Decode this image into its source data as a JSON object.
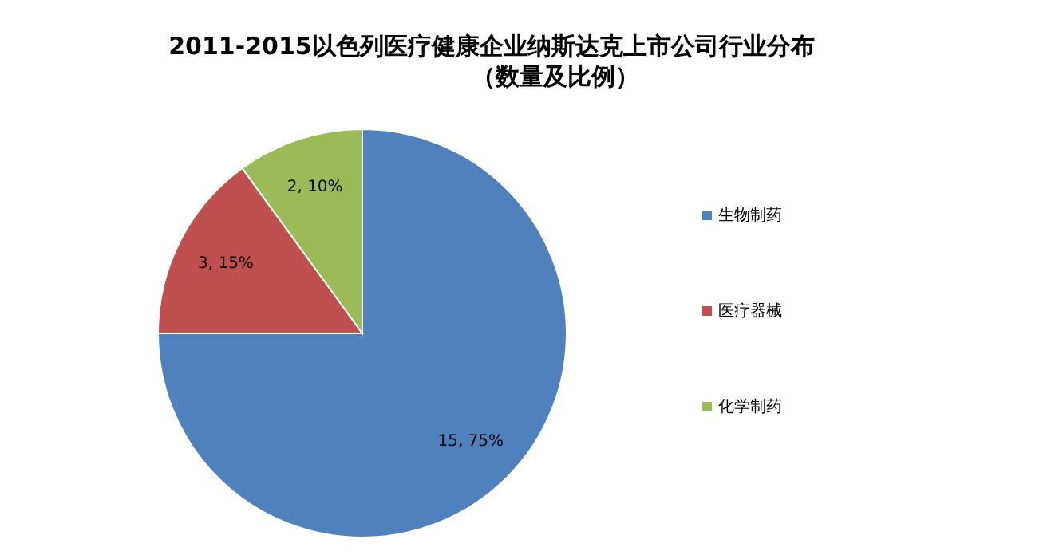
{
  "chart_data": {
    "type": "pie",
    "title": "2011-2015以色列医疗健康企业纳斯达克上市公司行业分布",
    "subtitle": "（数量及比例）",
    "categories": [
      "生物制药",
      "医疗器械",
      "化学制药"
    ],
    "values": [
      15,
      3,
      2
    ],
    "colors": [
      "#4f81bd",
      "#c0504d",
      "#9bbb59"
    ],
    "value_labels": [
      "15, 75%",
      "3, 15%",
      "2, 10%"
    ],
    "legend": "right"
  }
}
